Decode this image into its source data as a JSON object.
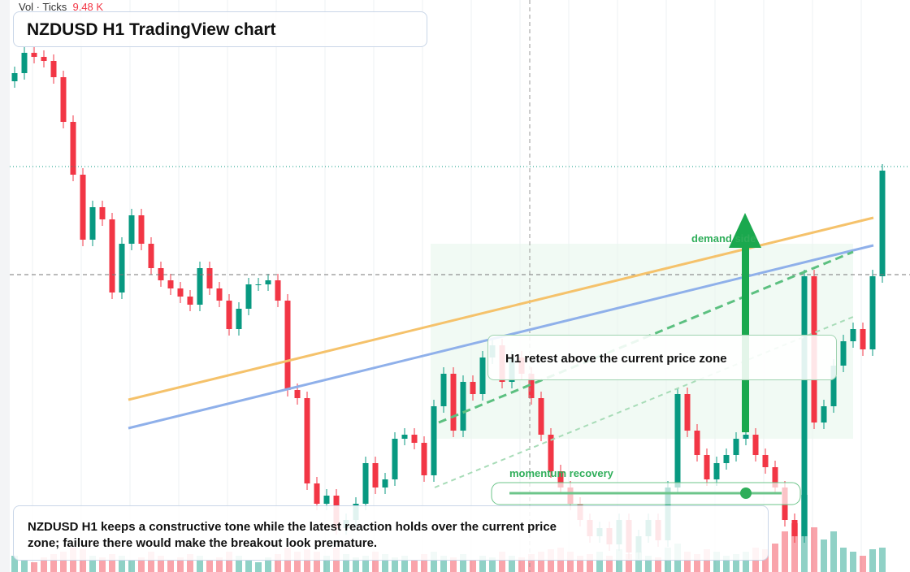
{
  "header": {
    "vol_label": "Vol · Ticks",
    "vol_value": "9.48 K"
  },
  "chart_data": {
    "type": "candlestick",
    "title": "NZDUSD H1 TradingView chart",
    "ylim": [
      0,
      700
    ],
    "vlim": [
      0,
      100
    ],
    "up_color": "#089981",
    "down_color": "#f23645",
    "open": [
      600,
      610,
      635,
      630,
      625,
      605,
      550,
      485,
      405,
      445,
      430,
      340,
      400,
      435,
      400,
      370,
      355,
      345,
      335,
      325,
      370,
      345,
      330,
      295,
      320,
      350,
      350,
      355,
      330,
      220,
      210,
      105,
      80,
      90,
      50,
      60,
      80,
      130,
      100,
      110,
      160,
      165,
      155,
      115,
      200,
      240,
      170,
      230,
      215,
      260,
      275,
      230,
      260,
      240,
      210,
      165,
      120,
      100,
      80,
      60,
      40,
      50,
      30,
      60,
      20,
      40,
      60,
      35,
      100,
      215,
      170,
      140,
      110,
      130,
      140,
      160,
      165,
      140,
      125,
      100,
      60,
      40,
      360,
      180,
      200,
      250,
      280,
      295,
      270,
      360
    ],
    "high": [
      618,
      643,
      643,
      638,
      633,
      613,
      558,
      493,
      453,
      453,
      438,
      408,
      443,
      443,
      408,
      378,
      363,
      353,
      343,
      378,
      378,
      353,
      338,
      328,
      358,
      358,
      363,
      363,
      338,
      228,
      218,
      113,
      98,
      98,
      68,
      88,
      138,
      138,
      118,
      168,
      173,
      173,
      163,
      208,
      248,
      248,
      238,
      238,
      268,
      283,
      283,
      268,
      268,
      248,
      218,
      173,
      128,
      108,
      88,
      68,
      58,
      58,
      68,
      68,
      48,
      68,
      68,
      108,
      223,
      223,
      178,
      148,
      138,
      148,
      168,
      173,
      173,
      148,
      133,
      108,
      68,
      368,
      368,
      208,
      258,
      288,
      303,
      303,
      368,
      498
    ],
    "low": [
      592,
      602,
      622,
      617,
      597,
      542,
      477,
      397,
      397,
      422,
      332,
      332,
      392,
      392,
      362,
      347,
      337,
      327,
      317,
      317,
      337,
      322,
      287,
      287,
      312,
      342,
      342,
      322,
      212,
      202,
      97,
      72,
      72,
      42,
      42,
      52,
      72,
      92,
      92,
      102,
      152,
      147,
      107,
      107,
      192,
      162,
      162,
      207,
      207,
      252,
      222,
      222,
      232,
      202,
      157,
      112,
      92,
      72,
      52,
      32,
      32,
      22,
      22,
      12,
      12,
      32,
      27,
      27,
      92,
      162,
      132,
      102,
      102,
      122,
      132,
      152,
      132,
      117,
      92,
      52,
      32,
      32,
      172,
      172,
      192,
      242,
      272,
      262,
      262,
      352
    ],
    "close": [
      610,
      635,
      630,
      625,
      605,
      550,
      485,
      405,
      445,
      430,
      340,
      400,
      435,
      400,
      370,
      355,
      345,
      335,
      325,
      370,
      345,
      330,
      295,
      320,
      350,
      350,
      355,
      330,
      220,
      210,
      105,
      80,
      90,
      50,
      60,
      80,
      130,
      100,
      110,
      160,
      165,
      155,
      115,
      200,
      240,
      170,
      230,
      215,
      260,
      275,
      230,
      260,
      240,
      210,
      165,
      120,
      100,
      80,
      60,
      40,
      50,
      30,
      60,
      20,
      40,
      60,
      35,
      100,
      215,
      170,
      140,
      110,
      130,
      140,
      160,
      165,
      140,
      125,
      100,
      60,
      40,
      360,
      180,
      200,
      250,
      280,
      295,
      270,
      360,
      490
    ],
    "volume": [
      20,
      15,
      12,
      18,
      22,
      25,
      30,
      28,
      20,
      18,
      22,
      20,
      15,
      18,
      25,
      20,
      15,
      18,
      22,
      20,
      15,
      18,
      25,
      20,
      15,
      12,
      18,
      22,
      30,
      25,
      28,
      25,
      20,
      30,
      22,
      18,
      20,
      25,
      22,
      18,
      20,
      15,
      22,
      25,
      20,
      18,
      22,
      15,
      20,
      18,
      25,
      20,
      18,
      22,
      25,
      28,
      30,
      25,
      20,
      22,
      25,
      20,
      28,
      22,
      25,
      20,
      18,
      30,
      35,
      25,
      22,
      28,
      25,
      20,
      22,
      25,
      30,
      28,
      35,
      50,
      60,
      95,
      55,
      40,
      50,
      30,
      25,
      20,
      28,
      30
    ],
    "annotations": {
      "zone": "demand side",
      "retest": "H1 retest above the current price zone",
      "momentum": "momentum recovery",
      "note": "NZDUSD H1 keeps a constructive tone while the latest reaction holds over the current price zone; failure there would make the breakout look premature."
    }
  }
}
